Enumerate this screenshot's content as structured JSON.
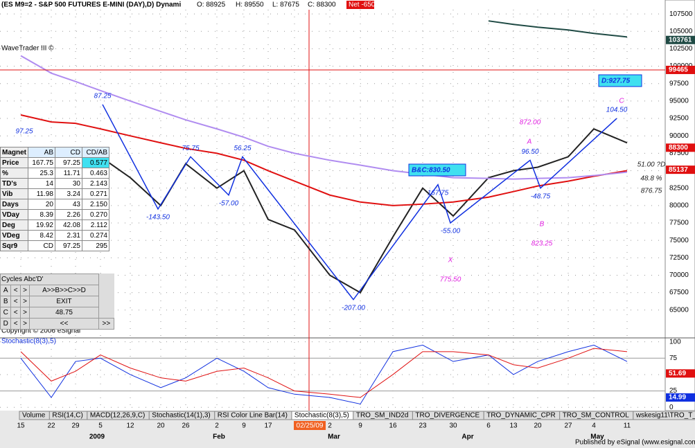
{
  "header": {
    "title": "(ES M9=2 - S&P 500 FUTURES E-MINI (DAY),D) Dynami",
    "open": "O: 88925",
    "high": "H: 89550",
    "low": "L: 87675",
    "close": "C: 88300",
    "net": "Net -650"
  },
  "brand": "WaveTrader III ©",
  "price": {
    "ylim": [
      61000,
      109500
    ],
    "yticks": [
      107500,
      105000,
      102500,
      100000,
      97500,
      95000,
      92500,
      90000,
      87500,
      85000,
      82500,
      80000,
      77500,
      75000,
      72500,
      70000,
      67500,
      65000
    ],
    "categories": [
      "15",
      "22",
      "29",
      "5",
      "12",
      "20",
      "26",
      "2",
      "9",
      "17",
      "23",
      "2",
      "9",
      "16",
      "23",
      "30",
      "6",
      "13",
      "20",
      "27",
      "4",
      "11"
    ],
    "months": [
      "2009",
      "Feb",
      "Mar",
      "Apr",
      "May"
    ],
    "marker_date": "02/25/09",
    "series": [
      {
        "name": "close",
        "color": "#222222",
        "values": [
          null,
          83000,
          86000,
          87000,
          84000,
          80000,
          86000,
          82500,
          85000,
          78000,
          76500,
          70000,
          67500,
          75500,
          82500,
          78500,
          84000,
          85000,
          85500,
          87000,
          91000,
          89000
        ]
      },
      {
        "name": "ma-red",
        "color": "#e01010",
        "values": [
          93000,
          92000,
          91800,
          91000,
          90000,
          89000,
          88200,
          87500,
          86500,
          85000,
          83500,
          81500,
          80500,
          80000,
          80200,
          80500,
          81200,
          82000,
          82800,
          83500,
          84200,
          85000
        ]
      },
      {
        "name": "ma-purple",
        "color": "#b08cf0",
        "values": [
          101500,
          99000,
          97800,
          96500,
          95000,
          93500,
          92300,
          91000,
          89800,
          88500,
          87500,
          86500,
          85800,
          85000,
          84500,
          84000,
          83900,
          83800,
          83900,
          84000,
          84300,
          84800
        ]
      },
      {
        "name": "ma-green",
        "color": "#1f4a44",
        "values": [
          null,
          null,
          null,
          null,
          null,
          null,
          null,
          null,
          null,
          null,
          null,
          null,
          null,
          null,
          null,
          null,
          106500,
          106000,
          105600,
          105200,
          104700,
          104200
        ]
      }
    ],
    "highlights": [
      {
        "value": 103761,
        "color": "#1f4a44"
      },
      {
        "value": 99465,
        "color": "#e01010"
      },
      {
        "value": 88300,
        "color": "#e01010"
      },
      {
        "value": 85137,
        "color": "#e01010"
      }
    ],
    "pivots": [
      {
        "label": "87.25",
        "price": 94500
      },
      {
        "label": "75.75",
        "price": 87000
      },
      {
        "label": "56.25",
        "price": 87000
      },
      {
        "label": "-143.50",
        "price": 79500
      },
      {
        "label": "-57.00",
        "price": 81500
      },
      {
        "label": "-207.00",
        "price": 66500
      },
      {
        "label": "167.75",
        "price": 83000
      },
      {
        "label": "-55.00",
        "price": 77500
      },
      {
        "label": "96.50",
        "price": 86500
      },
      {
        "label": "-48.75",
        "price": 82500
      },
      {
        "label": "104.50",
        "price": 92500
      }
    ],
    "annotations": [
      "97.25",
      "A",
      "B",
      "C",
      "X",
      "872.00",
      "775.50",
      "823.25",
      "876.75",
      "51.00 ?D",
      "48.8 %"
    ],
    "boxes": [
      "B&C:830.50",
      "D:927.75"
    ]
  },
  "stochastic": {
    "title": "Stochastic(8(3),5)",
    "ylim": [
      -4,
      106
    ],
    "yticks": [
      100,
      75,
      50,
      25,
      0
    ],
    "series": [
      {
        "name": "k",
        "color": "#1030e0",
        "values": [
          75,
          15,
          70,
          75,
          50,
          30,
          45,
          75,
          55,
          30,
          20,
          15,
          5,
          85,
          95,
          70,
          80,
          50,
          70,
          85,
          95,
          70
        ]
      },
      {
        "name": "d",
        "color": "#e01010",
        "values": [
          85,
          40,
          55,
          80,
          60,
          45,
          40,
          55,
          60,
          45,
          25,
          20,
          15,
          50,
          85,
          85,
          80,
          65,
          60,
          75,
          90,
          85
        ]
      }
    ],
    "highlights": [
      {
        "value": 51.69,
        "color": "#e01010"
      },
      {
        "value": 14.99,
        "color": "#1030e0"
      }
    ]
  },
  "table": {
    "header": [
      "Magnet",
      "AB",
      "CD",
      "CD/AB"
    ],
    "rows": [
      [
        "Price",
        "167.75",
        "97.25",
        "0.577"
      ],
      [
        "%",
        "25.3",
        "11.71",
        "0.463"
      ],
      [
        "TD's",
        "14",
        "30",
        "2.143"
      ],
      [
        "Vib",
        "11.98",
        "3.24",
        "0.271"
      ],
      [
        "Days",
        "20",
        "43",
        "2.150"
      ],
      [
        "VDay",
        "8.39",
        "2.26",
        "0.270"
      ],
      [
        "Deg",
        "19.92",
        "42.08",
        "2.112"
      ],
      [
        "VDeg",
        "8.42",
        "2.31",
        "0.274"
      ],
      [
        "Sqr9",
        "CD",
        "97.25",
        "295"
      ]
    ]
  },
  "cycles": {
    "title": "Cycles Abc'D'",
    "rows": [
      [
        "A",
        "<",
        ">",
        "A>>B>>C>>D"
      ],
      [
        "B",
        "<",
        ">",
        "EXIT"
      ],
      [
        "C",
        "<",
        ">",
        "48.75"
      ],
      [
        "D",
        "<",
        ">",
        "<<",
        ">>"
      ]
    ]
  },
  "copyright": "Copyright © 2006 eSignal",
  "tabs": [
    "Volume",
    "RSI(14,C)",
    "MACD(12,26,9,C)",
    "Stochastic(14(1),3)",
    "RSI Color Line Bar(14)",
    "Stochastic(8(3),5)",
    "TRO_SM_IND2d",
    "TRO_DIVERGENCE",
    "TRO_DYNAMIC_CPR",
    "TRO_SM_CONTROL",
    "wskesig11\\TRO_T_RSI trade signal.EFS(......,false,t"
  ],
  "footer": "Published by eSignal (www.esignal.com)"
}
